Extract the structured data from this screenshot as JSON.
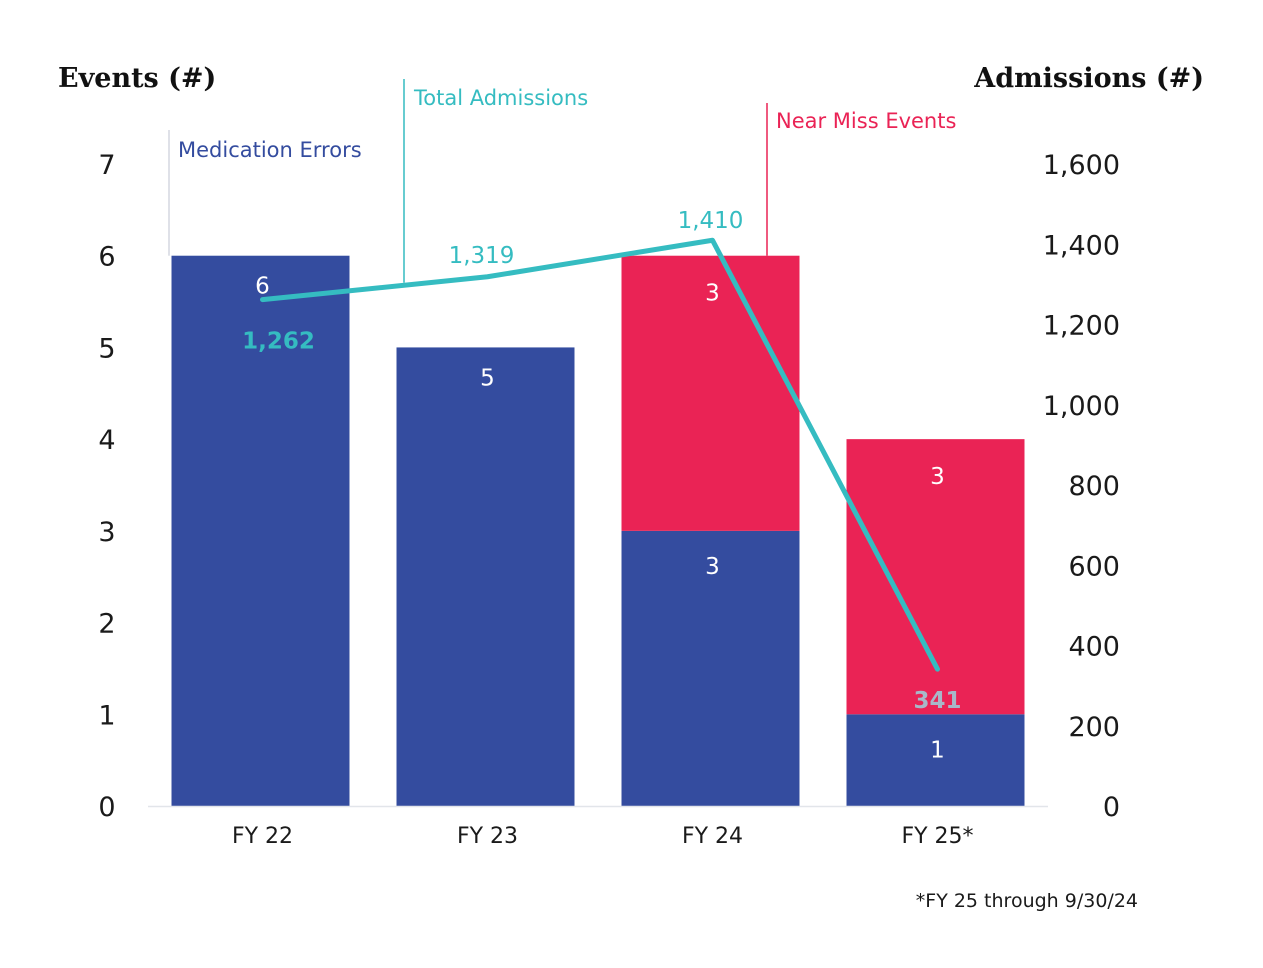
{
  "colors": {
    "medication": "#344c9f",
    "near_miss": "#ea2355",
    "admissions": "#35bcc1",
    "admissions_label_dark": "#a8b7c9",
    "baseline": "#e2e5ea",
    "leader_medication": "#d4d7e0"
  },
  "chart_data": {
    "type": "bar",
    "stacked": true,
    "categories": [
      "FY 22",
      "FY 23",
      "FY 24",
      "FY 25*"
    ],
    "series": [
      {
        "name": "Medication Errors",
        "values": [
          6,
          5,
          3,
          1
        ],
        "labels": [
          "6",
          "5",
          "3",
          "1"
        ],
        "axis": "left",
        "kind": "bar"
      },
      {
        "name": "Near Miss Events",
        "values": [
          0,
          0,
          3,
          3
        ],
        "labels": [
          "",
          "",
          "3",
          "3"
        ],
        "axis": "left",
        "kind": "bar"
      },
      {
        "name": "Total Admissions",
        "values": [
          1262,
          1319,
          1410,
          341
        ],
        "labels": [
          "1,262",
          "1,319",
          "1,410",
          "341"
        ],
        "axis": "right",
        "kind": "line"
      }
    ],
    "left_axis": {
      "title": "Events (#)",
      "ylim": [
        0,
        7
      ],
      "ticks": [
        "0",
        "1",
        "2",
        "3",
        "4",
        "5",
        "6",
        "7"
      ]
    },
    "right_axis": {
      "title": "Admissions (#)",
      "ylim": [
        0,
        1600
      ],
      "ticks": [
        "0",
        "200",
        "400",
        "600",
        "800",
        "1,000",
        "1,200",
        "1,400",
        "1,600"
      ]
    },
    "legend": {
      "placement": "top",
      "style": "leader-line annotations"
    },
    "footnote": "*FY 25 through 9/30/24",
    "grid": false
  }
}
